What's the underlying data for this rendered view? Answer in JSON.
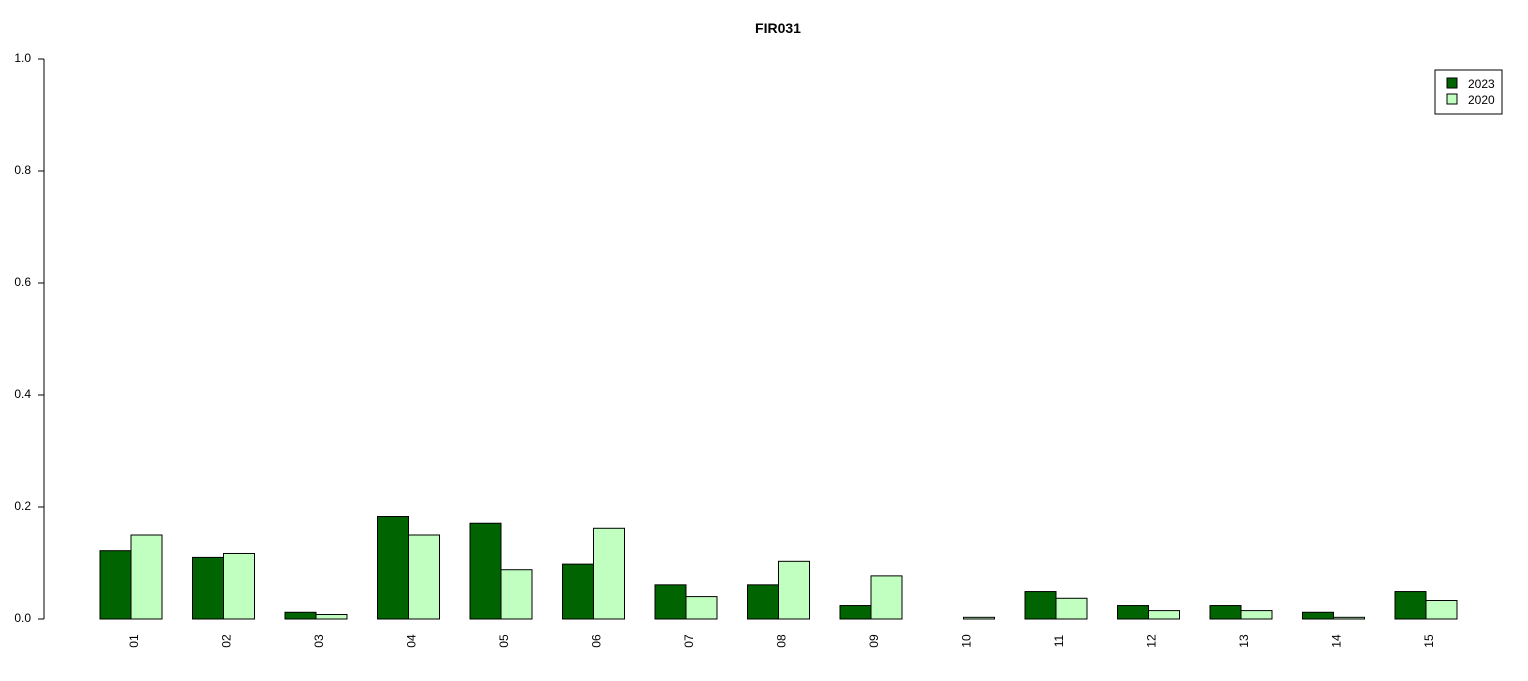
{
  "chart_data": {
    "type": "bar",
    "title": "FIR031",
    "xlabel": "",
    "ylabel": "",
    "categories": [
      "01",
      "02",
      "03",
      "04",
      "05",
      "06",
      "07",
      "08",
      "09",
      "10",
      "11",
      "12",
      "13",
      "14",
      "15"
    ],
    "series": [
      {
        "name": "2023",
        "color": "#006400",
        "values": [
          0.122,
          0.11,
          0.012,
          0.183,
          0.171,
          0.098,
          0.061,
          0.061,
          0.024,
          0.0,
          0.049,
          0.024,
          0.024,
          0.012,
          0.049
        ]
      },
      {
        "name": "2020",
        "color": "#c1ffc1",
        "values": [
          0.15,
          0.117,
          0.008,
          0.15,
          0.088,
          0.162,
          0.04,
          0.103,
          0.077,
          0.003,
          0.037,
          0.015,
          0.015,
          0.003,
          0.033
        ]
      }
    ],
    "ylim": [
      0,
      1.0
    ],
    "yticks": [
      "0.0",
      "0.2",
      "0.4",
      "0.6",
      "0.8",
      "1.0"
    ],
    "legend_position": "top-right",
    "grid": false
  }
}
